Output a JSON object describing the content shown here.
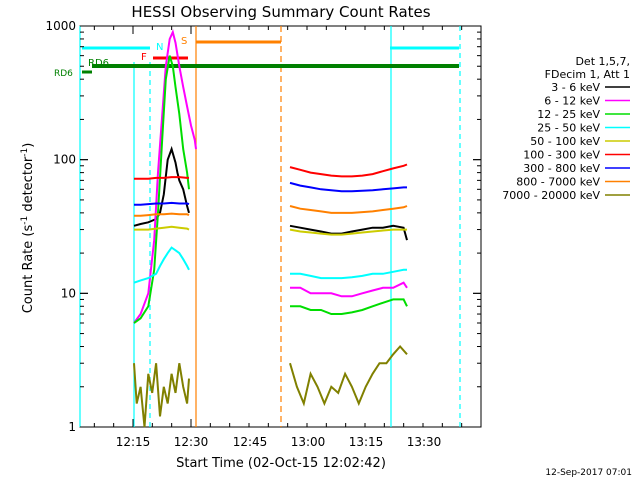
{
  "chart_data": {
    "type": "line",
    "title": "HESSI Observing Summary Count Rates",
    "xlabel": "Start Time (02-Oct-15 12:02:42)",
    "ylabel_main": "Count Rate (s",
    "ylabel_sup1": "-1",
    "ylabel_mid": " detector",
    "ylabel_sup2": "-1",
    "ylabel_end": ")",
    "yscale": "log",
    "ylim": [
      1,
      1000
    ],
    "xlim_minutes": [
      2.7,
      57.0
    ],
    "x_tick_labels": [
      "12:15",
      "12:30",
      "12:45",
      "13:00",
      "13:15",
      "13:30"
    ],
    "y_tick_labels": [
      "1",
      "10",
      "100",
      "1000"
    ],
    "legend_header": [
      "Det 1,5,7,",
      "FDecim 1, Att 1"
    ],
    "legend_placement": "right",
    "footer": "12-Sep-2017 07:01",
    "colors": {
      "3 - 6 keV": "#000000",
      "6 - 12 keV": "#ff00ff",
      "12 - 25 keV": "#00dd00",
      "25 - 50 keV": "#00ffff",
      "50 - 100 keV": "#cccc00",
      "100 - 300 keV": "#ff0000",
      "300 - 800 keV": "#0000ff",
      "800 - 7000 keV": "#ff8000",
      "7000 - 20000 keV": "#808000"
    },
    "flags": [
      {
        "label": "RD6",
        "color": "#008000"
      },
      {
        "label": "RD6",
        "color": "#008000"
      },
      {
        "label": "F",
        "color": "#ff0000"
      },
      {
        "label": "N",
        "color": "#00ffff"
      },
      {
        "label": "S",
        "color": "#ff8000"
      }
    ],
    "series": [
      {
        "name": "3 - 6 keV",
        "segments": [
          {
            "x": [
              16.3,
              18,
              20,
              22,
              23,
              24,
              25,
              26,
              27,
              27.5,
              28,
              29,
              30,
              30.5
            ],
            "y": [
              32,
              33,
              34,
              36,
              40,
              55,
              100,
              120,
              95,
              80,
              70,
              60,
              45,
              40
            ]
          },
          {
            "x": [
              54.0,
              57,
              60,
              63,
              66,
              69,
              72,
              75,
              78,
              81,
              84,
              87,
              88
            ],
            "y": [
              32,
              31,
              30,
              29,
              28,
              28,
              29,
              30,
              31,
              31,
              32,
              31,
              25
            ]
          }
        ]
      },
      {
        "name": "6 - 12 keV",
        "segments": [
          {
            "x": [
              16.3,
              18,
              20,
              21.5,
              22.5,
              23.5,
              24.5,
              25.5,
              26.3,
              27,
              28,
              29,
              30,
              31,
              32,
              32.3
            ],
            "y": [
              6,
              7,
              10,
              25,
              80,
              200,
              500,
              800,
              900,
              750,
              500,
              350,
              250,
              180,
              140,
              120
            ]
          },
          {
            "x": [
              54.0,
              57,
              60,
              63,
              66,
              69,
              72,
              75,
              78,
              81,
              84,
              87,
              88
            ],
            "y": [
              11,
              11,
              10,
              10,
              10,
              9.5,
              9.5,
              10,
              10.5,
              11,
              11,
              12,
              11
            ]
          }
        ]
      },
      {
        "name": "12 - 25 keV",
        "segments": [
          {
            "x": [
              16.3,
              18,
              20,
              21.5,
              22.5,
              23.5,
              24.5,
              25.5,
              26.3,
              27,
              28,
              29,
              30,
              30.5
            ],
            "y": [
              6,
              6.5,
              8,
              15,
              40,
              130,
              400,
              600,
              500,
              350,
              220,
              120,
              80,
              60
            ]
          },
          {
            "x": [
              54.0,
              57,
              60,
              63,
              66,
              69,
              72,
              75,
              78,
              81,
              84,
              87,
              88
            ],
            "y": [
              8,
              8,
              7.5,
              7.5,
              7,
              7,
              7.2,
              7.5,
              8,
              8.5,
              9,
              9,
              8
            ]
          }
        ]
      },
      {
        "name": "25 - 50 keV",
        "segments": [
          {
            "x": [
              16.3,
              18,
              20,
              22,
              23,
              24,
              25,
              26,
              27,
              28,
              29,
              30,
              30.5
            ],
            "y": [
              12,
              12.5,
              13,
              14,
              16,
              18,
              20,
              22,
              21,
              20,
              18,
              16,
              15
            ]
          },
          {
            "x": [
              54.0,
              57,
              60,
              63,
              66,
              69,
              72,
              75,
              78,
              81,
              84,
              87,
              88
            ],
            "y": [
              14,
              14,
              13.5,
              13,
              13,
              13,
              13.2,
              13.5,
              14,
              14,
              14.5,
              15,
              15
            ]
          }
        ]
      },
      {
        "name": "50 - 100 keV",
        "segments": [
          {
            "x": [
              16.3,
              18,
              20,
              22,
              24,
              26,
              28,
              30,
              30.5
            ],
            "y": [
              30,
              30,
              30,
              30.5,
              31,
              31.5,
              31,
              30.5,
              30
            ]
          },
          {
            "x": [
              54.0,
              57,
              60,
              63,
              66,
              69,
              72,
              75,
              78,
              81,
              84,
              87,
              88
            ],
            "y": [
              30,
              29,
              28.5,
              28,
              27.5,
              27.5,
              28,
              28.5,
              29,
              29.5,
              30,
              30,
              30
            ]
          }
        ]
      },
      {
        "name": "100 - 300 keV",
        "segments": [
          {
            "x": [
              16.3,
              18,
              20,
              22,
              24,
              26,
              28,
              30,
              30.5
            ],
            "y": [
              72,
              72,
              72,
              73,
              73,
              74,
              74,
              73,
              73
            ]
          },
          {
            "x": [
              54.0,
              57,
              60,
              63,
              66,
              69,
              72,
              75,
              78,
              81,
              84,
              87,
              88
            ],
            "y": [
              88,
              84,
              80,
              78,
              76,
              75,
              75,
              76,
              78,
              82,
              86,
              90,
              92
            ]
          }
        ]
      },
      {
        "name": "300 - 800 keV",
        "segments": [
          {
            "x": [
              16.3,
              18,
              20,
              22,
              24,
              26,
              28,
              30,
              30.5
            ],
            "y": [
              46,
              46,
              46.5,
              47,
              47,
              47.5,
              47,
              47,
              46.5
            ]
          },
          {
            "x": [
              54.0,
              57,
              60,
              63,
              66,
              69,
              72,
              75,
              78,
              81,
              84,
              87,
              88
            ],
            "y": [
              67,
              64,
              62,
              60,
              59,
              58,
              58,
              58.5,
              59,
              60,
              61,
              62,
              62
            ]
          }
        ]
      },
      {
        "name": "800 - 7000 keV",
        "segments": [
          {
            "x": [
              16.3,
              18,
              20,
              22,
              24,
              26,
              28,
              30,
              30.5
            ],
            "y": [
              38,
              38,
              38.5,
              39,
              39,
              39.5,
              39,
              39,
              38.5
            ]
          },
          {
            "x": [
              54.0,
              57,
              60,
              63,
              66,
              69,
              72,
              75,
              78,
              81,
              84,
              87,
              88
            ],
            "y": [
              45,
              43,
              42,
              41,
              40,
              40,
              40,
              40.5,
              41,
              42,
              43,
              44,
              45
            ]
          }
        ]
      },
      {
        "name": "7000 - 20000 keV",
        "segments": [
          {
            "x": [
              16.3,
              17,
              18,
              19,
              20,
              21,
              22,
              23,
              24,
              25,
              26,
              27,
              28,
              29,
              30,
              30.5
            ],
            "y": [
              3,
              1.5,
              2,
              1,
              2.5,
              1.8,
              3,
              1.2,
              2,
              1.5,
              2.5,
              1.8,
              3,
              2,
              1.5,
              2.3
            ]
          },
          {
            "x": [
              54.0,
              56,
              58,
              60,
              62,
              64,
              66,
              68,
              70,
              72,
              74,
              76,
              78,
              80,
              82,
              84,
              86,
              88
            ],
            "y": [
              3,
              2,
              1.5,
              2.5,
              2,
              1.5,
              2,
              1.8,
              2.5,
              2,
              1.5,
              2,
              2.5,
              3,
              3,
              3.5,
              4,
              3.5
            ]
          }
        ]
      }
    ]
  }
}
